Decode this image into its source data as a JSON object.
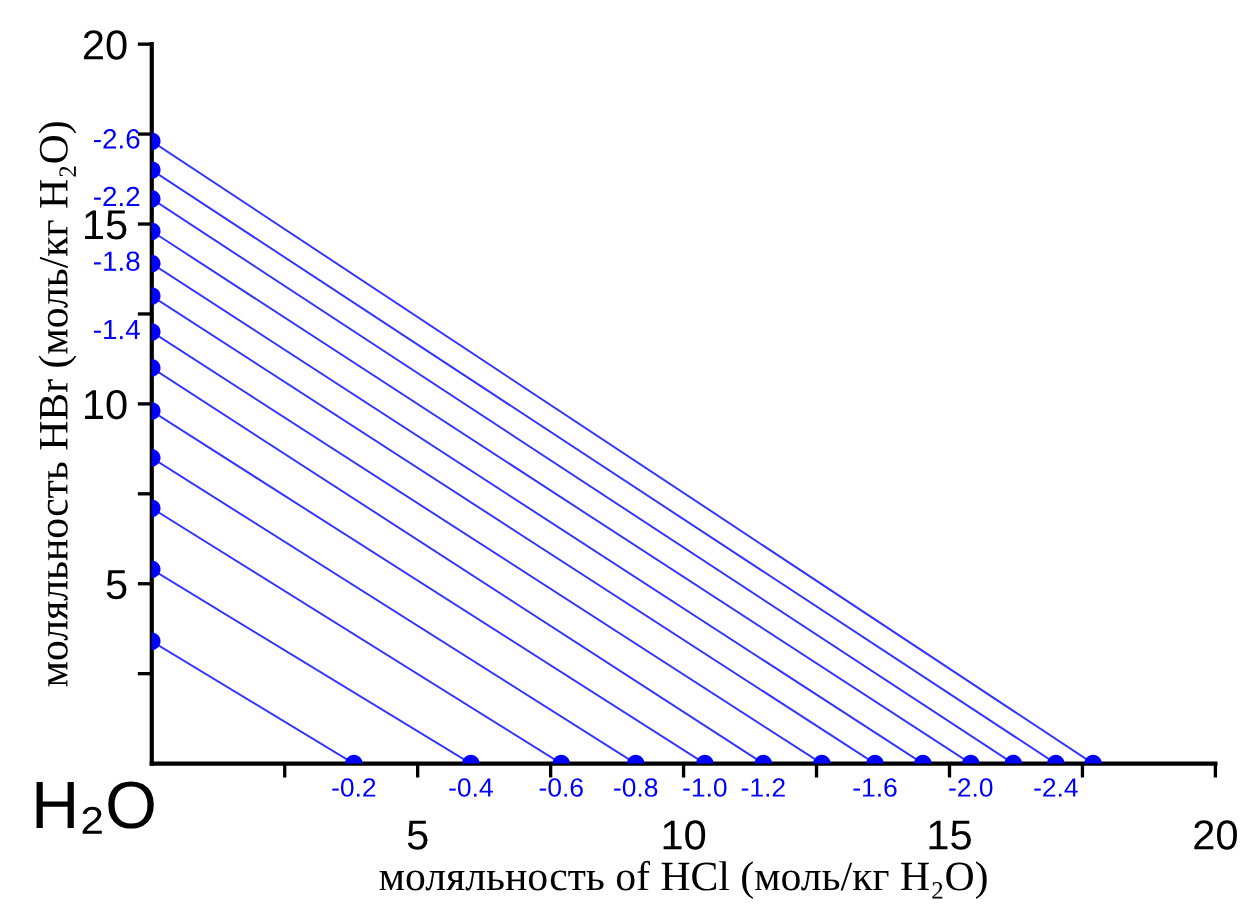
{
  "chart_data": {
    "type": "line",
    "xlabel": "моляльность of HCl (моль/кг H₂O)",
    "ylabel": "моляльность HBr (моль/кг H₂O)",
    "xlim": [
      0,
      20
    ],
    "ylim": [
      0,
      20
    ],
    "xticks": [
      {
        "value": 2.5,
        "label": null
      },
      5,
      {
        "value": 7.5,
        "label": null
      },
      10,
      {
        "value": 12.5,
        "label": null
      },
      15,
      {
        "value": 17.5,
        "label": null
      },
      20
    ],
    "yticks": [
      {
        "value": 2.5,
        "label": null
      },
      5,
      {
        "value": 7.5,
        "label": null
      },
      10,
      {
        "value": 12.5,
        "label": null
      },
      15,
      {
        "value": 17.5,
        "label": null
      },
      20
    ],
    "grid": false,
    "marker": "circle",
    "line_style": "solid",
    "series": [
      {
        "color": "#0000ff",
        "x": [
          0,
          3.8
        ],
        "values": [
          3.4,
          0
        ]
      },
      {
        "color": "#0000ff",
        "x": [
          0,
          6.0
        ],
        "values": [
          5.4,
          0
        ]
      },
      {
        "color": "#0000ff",
        "x": [
          0,
          7.7
        ],
        "values": [
          7.1,
          0
        ]
      },
      {
        "color": "#0000ff",
        "x": [
          0,
          9.1
        ],
        "values": [
          8.5,
          0
        ]
      },
      {
        "color": "#0000ff",
        "x": [
          0,
          10.4
        ],
        "values": [
          9.8,
          0
        ]
      },
      {
        "color": "#0000ff",
        "x": [
          0,
          11.5
        ],
        "values": [
          11.0,
          0
        ]
      },
      {
        "color": "#0000ff",
        "x": [
          0,
          12.6
        ],
        "values": [
          12.0,
          0
        ]
      },
      {
        "color": "#0000ff",
        "x": [
          0,
          13.6
        ],
        "values": [
          13.0,
          0
        ]
      },
      {
        "color": "#0000ff",
        "x": [
          0,
          14.5
        ],
        "values": [
          13.9,
          0
        ]
      },
      {
        "color": "#0000ff",
        "x": [
          0,
          15.4
        ],
        "values": [
          14.8,
          0
        ]
      },
      {
        "color": "#0000ff",
        "x": [
          0,
          16.2
        ],
        "values": [
          15.7,
          0
        ]
      },
      {
        "color": "#0000ff",
        "x": [
          0,
          17.0
        ],
        "values": [
          16.5,
          0
        ]
      },
      {
        "color": "#0000ff",
        "x": [
          0,
          17.7
        ],
        "values": [
          17.3,
          0
        ]
      }
    ],
    "annotations": [
      {
        "text": "-0.2",
        "x": 3.8,
        "y": 0
      },
      {
        "text": "-0.4",
        "x": 6.0,
        "y": 0
      },
      {
        "text": "-0.6",
        "x": 7.7,
        "y": 0
      },
      {
        "text": "-0.8",
        "x": 9.1,
        "y": 0
      },
      {
        "text": "-1.0",
        "x": 10.4,
        "y": 0
      },
      {
        "text": "-1.2",
        "x": 11.5,
        "y": 0
      },
      {
        "text": "-1.6",
        "x": 13.6,
        "y": 0
      },
      {
        "text": "-2.0",
        "x": 15.4,
        "y": 0
      },
      {
        "text": "-2.4",
        "x": 17.0,
        "y": 0
      },
      {
        "text": "-1.4",
        "x": 0,
        "y": 12.0
      },
      {
        "text": "-1.8",
        "x": 0,
        "y": 13.9
      },
      {
        "text": "-2.2",
        "x": 0,
        "y": 15.7
      },
      {
        "text": "-2.6",
        "x": 0,
        "y": 17.3
      },
      "H₂O"
    ]
  }
}
